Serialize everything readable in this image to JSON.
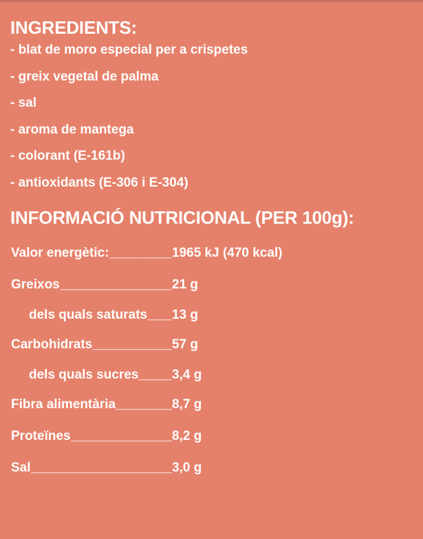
{
  "page": {
    "background_color": "#E5816B",
    "text_color": "#FFFDFC",
    "top_strip_color": "rgba(0,0,0,0.14)"
  },
  "ingredients": {
    "heading": "INGREDIENTS:",
    "items": [
      "- blat de moro especial per a crispetes",
      "- greix vegetal de palma",
      "- sal",
      "- aroma de mantega",
      "- colorant (E-161b)",
      "- antioxidants (E-306 i E-304)"
    ]
  },
  "nutrition": {
    "heading": "INFORMACIÓ NUTRICIONAL (PER 100g):",
    "filler": "________________________________________",
    "rows": [
      {
        "label": "Valor energètic:",
        "value": "1965 kJ (470 kcal)",
        "indent": false
      },
      {
        "label": "Greixos",
        "value": "21 g",
        "indent": false
      },
      {
        "label": "dels quals saturats",
        "value": "13 g",
        "indent": true
      },
      {
        "label": "Carbohidrats",
        "value": "57 g",
        "indent": false
      },
      {
        "label": "dels quals sucres",
        "value": "3,4 g",
        "indent": true
      },
      {
        "label": "Fibra alimentària",
        "value": "8,7 g",
        "indent": false
      },
      {
        "label": "Proteïnes",
        "value": "8,2 g",
        "indent": false
      },
      {
        "label": "Sal",
        "value": "3,0 g",
        "indent": false
      }
    ]
  }
}
